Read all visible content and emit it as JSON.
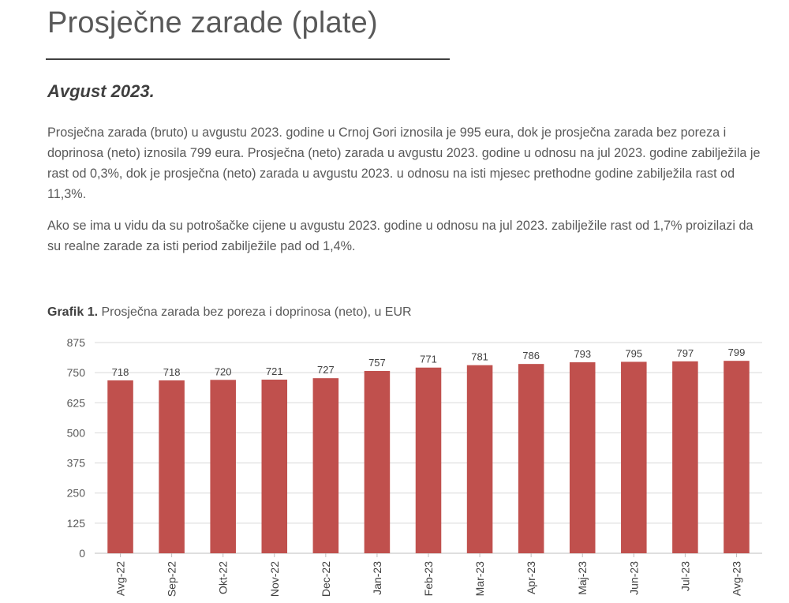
{
  "header": {
    "title": "Prosječne zarade (plate)"
  },
  "section": {
    "subtitle": "Avgust 2023."
  },
  "paragraphs": [
    "Prosječna zarada (bruto) u avgustu 2023. godine u Crnoj Gori iznosila je 995 eura, dok je prosječna zarada bez poreza i doprinosa (neto) iznosila 799 eura. Prosječna (neto) zarada u avgustu 2023. godine u odnosu na jul 2023. godine zabilježila je rast od 0,3%, dok je prosječna (neto) zarada u avgustu 2023. u odnosu na isti mjesec prethodne godine zabilježila rast od 11,3%.",
    "Ako se ima u vidu da su potrošačke cijene u avgustu 2023. godine u odnosu na jul 2023. zabilježile rast od 1,7% proizilazi da su realne zarade za isti period zabilježile pad od 1,4%."
  ],
  "caption": {
    "label": "Grafik 1.",
    "text": "Prosječna zarada bez poreza i doprinosa (neto), u EUR"
  },
  "chart_data": {
    "type": "bar",
    "title": "Prosječna zarada bez poreza i doprinosa (neto), u EUR",
    "categories": [
      "Avg-22",
      "Sep-22",
      "Okt-22",
      "Nov-22",
      "Dec-22",
      "Jan-23",
      "Feb-23",
      "Mar-23",
      "Apr-23",
      "Maj-23",
      "Jun-23",
      "Jul-23",
      "Avg-23"
    ],
    "values": [
      718,
      718,
      720,
      721,
      727,
      757,
      771,
      781,
      786,
      793,
      795,
      797,
      799
    ],
    "ylim": [
      0,
      875
    ],
    "yticks": [
      0,
      125,
      250,
      375,
      500,
      625,
      750,
      875
    ],
    "grid": true,
    "legend": "none",
    "xlabel": "",
    "ylabel": "",
    "bar_color": "#C0504D"
  }
}
